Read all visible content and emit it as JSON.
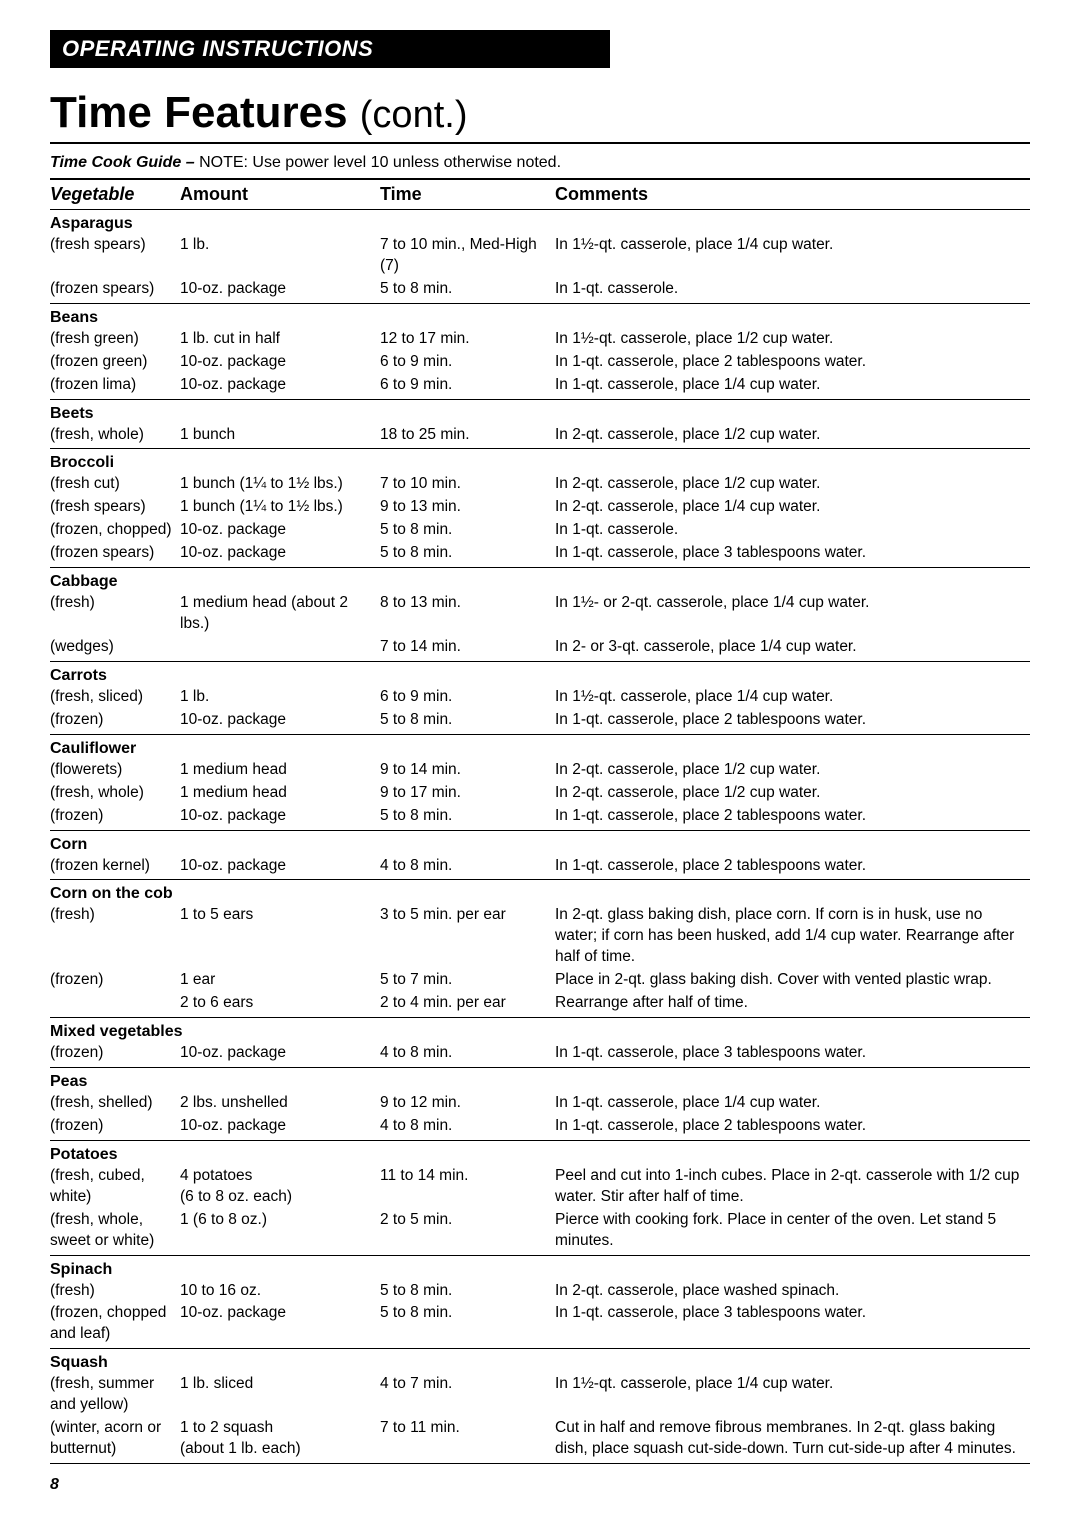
{
  "header_bar": "OPERATING INSTRUCTIONS",
  "title_main": "Time Features",
  "title_cont": "(cont.)",
  "guide_label": "Time Cook Guide –",
  "guide_note": " NOTE: Use power level 10 unless otherwise noted.",
  "columns": {
    "c1": "Vegetable",
    "c2": "Amount",
    "c3": "Time",
    "c4": "Comments"
  },
  "page_number": "8",
  "sections": [
    {
      "title": "Asparagus",
      "rows": [
        {
          "veg": "(fresh spears)",
          "amount": "1 lb.",
          "time": "7 to 10 min., Med-High (7)",
          "comment": "In 1½-qt. casserole, place 1/4 cup water."
        },
        {
          "veg": "(frozen spears)",
          "amount": "10-oz. package",
          "time": "5 to 8 min.",
          "comment": "In 1-qt. casserole."
        }
      ]
    },
    {
      "title": "Beans",
      "rows": [
        {
          "veg": "(fresh green)",
          "amount": "1 lb. cut in half",
          "time": "12 to 17 min.",
          "comment": "In 1½-qt. casserole, place 1/2 cup water."
        },
        {
          "veg": "(frozen green)",
          "amount": "10-oz. package",
          "time": "6 to 9 min.",
          "comment": "In 1-qt. casserole, place 2 tablespoons water."
        },
        {
          "veg": "(frozen lima)",
          "amount": "10-oz. package",
          "time": "6 to 9 min.",
          "comment": "In 1-qt. casserole, place 1/4 cup water."
        }
      ]
    },
    {
      "title": "Beets",
      "rows": [
        {
          "veg": "(fresh, whole)",
          "amount": "1 bunch",
          "time": "18 to 25 min.",
          "comment": "In 2-qt. casserole, place 1/2 cup water."
        }
      ]
    },
    {
      "title": "Broccoli",
      "rows": [
        {
          "veg": "(fresh cut)",
          "amount": "1 bunch (1¼ to 1½ lbs.)",
          "time": "7 to 10 min.",
          "comment": "In 2-qt. casserole, place 1/2 cup water."
        },
        {
          "veg": "(fresh spears)",
          "amount": "1 bunch (1¼ to 1½ lbs.)",
          "time": "9 to 13 min.",
          "comment": "In 2-qt. casserole, place 1/4 cup water."
        },
        {
          "veg": "(frozen, chopped)",
          "amount": "10-oz. package",
          "time": "5 to 8 min.",
          "comment": "In 1-qt. casserole."
        },
        {
          "veg": "(frozen spears)",
          "amount": "10-oz. package",
          "time": "5 to 8 min.",
          "comment": "In 1-qt. casserole, place 3 tablespoons water."
        }
      ]
    },
    {
      "title": "Cabbage",
      "rows": [
        {
          "veg": "(fresh)",
          "amount": "1 medium head (about 2 lbs.)",
          "time": "8 to 13 min.",
          "comment": "In 1½- or 2-qt. casserole, place 1/4 cup water."
        },
        {
          "veg": "(wedges)",
          "amount": "",
          "time": "7 to 14 min.",
          "comment": "In 2- or 3-qt. casserole, place 1/4 cup water."
        }
      ]
    },
    {
      "title": "Carrots",
      "rows": [
        {
          "veg": "(fresh, sliced)",
          "amount": "1 lb.",
          "time": "6 to 9 min.",
          "comment": "In 1½-qt. casserole, place 1/4 cup water."
        },
        {
          "veg": "(frozen)",
          "amount": "10-oz. package",
          "time": "5 to 8 min.",
          "comment": "In 1-qt. casserole, place 2 tablespoons water."
        }
      ]
    },
    {
      "title": "Cauliflower",
      "rows": [
        {
          "veg": "(flowerets)",
          "amount": "1 medium head",
          "time": "9 to 14 min.",
          "comment": "In 2-qt. casserole, place 1/2 cup water."
        },
        {
          "veg": "(fresh, whole)",
          "amount": "1 medium head",
          "time": "9 to 17 min.",
          "comment": "In 2-qt. casserole, place 1/2 cup water."
        },
        {
          "veg": "(frozen)",
          "amount": "10-oz. package",
          "time": "5 to 8 min.",
          "comment": "In 1-qt. casserole, place 2 tablespoons water."
        }
      ]
    },
    {
      "title": "Corn",
      "rows": [
        {
          "veg": "(frozen kernel)",
          "amount": "10-oz. package",
          "time": "4 to 8 min.",
          "comment": "In 1-qt. casserole, place 2 tablespoons water."
        }
      ]
    },
    {
      "title": "Corn on the cob",
      "rows": [
        {
          "veg": "(fresh)",
          "amount": "1 to 5 ears",
          "time": "3 to 5 min. per ear",
          "comment": "In 2-qt. glass baking dish, place corn. If corn is in husk, use no water; if corn has been husked, add 1/4 cup water. Rearrange after half of time."
        },
        {
          "veg": "(frozen)",
          "amount": "1 ear",
          "time": "5 to 7 min.",
          "comment": "Place in 2-qt. glass baking dish. Cover with vented plastic wrap."
        },
        {
          "veg": "",
          "amount": "2 to 6 ears",
          "time": "2 to 4 min. per ear",
          "comment": "Rearrange after half of time."
        }
      ]
    },
    {
      "title": "Mixed vegetables",
      "rows": [
        {
          "veg": "(frozen)",
          "amount": "10-oz. package",
          "time": "4 to 8 min.",
          "comment": "In 1-qt. casserole, place 3 tablespoons water."
        }
      ]
    },
    {
      "title": "Peas",
      "rows": [
        {
          "veg": "(fresh, shelled)",
          "amount": "2 lbs. unshelled",
          "time": "9 to 12 min.",
          "comment": "In 1-qt. casserole, place 1/4 cup water."
        },
        {
          "veg": "(frozen)",
          "amount": "10-oz. package",
          "time": "4 to 8 min.",
          "comment": "In 1-qt. casserole, place 2 tablespoons water."
        }
      ]
    },
    {
      "title": "Potatoes",
      "rows": [
        {
          "veg": "(fresh, cubed, white)",
          "amount": "4 potatoes\n(6 to 8 oz. each)",
          "time": "11 to 14 min.",
          "comment": "Peel and cut into 1-inch cubes. Place in 2-qt. casserole with 1/2 cup water. Stir after half of time."
        },
        {
          "veg": "(fresh, whole, sweet or white)",
          "amount": "1 (6 to 8 oz.)",
          "time": "2 to 5 min.",
          "comment": "Pierce with cooking fork. Place in center of the oven. Let stand 5 minutes."
        }
      ]
    },
    {
      "title": "Spinach",
      "rows": [
        {
          "veg": "(fresh)",
          "amount": "10 to 16 oz.",
          "time": "5 to 8 min.",
          "comment": "In 2-qt. casserole, place washed spinach."
        },
        {
          "veg": "(frozen, chopped and leaf)",
          "amount": "10-oz. package",
          "time": "5 to 8 min.",
          "comment": "In 1-qt. casserole, place 3 tablespoons water."
        }
      ]
    },
    {
      "title": "Squash",
      "rows": [
        {
          "veg": "(fresh, summer and yellow)",
          "amount": "1 lb. sliced",
          "time": "4 to 7 min.",
          "comment": "In 1½-qt. casserole, place 1/4 cup water."
        },
        {
          "veg": "(winter, acorn or butternut)",
          "amount": "1 to 2 squash\n(about 1 lb. each)",
          "time": "7 to 11 min.",
          "comment": "Cut in half and remove fibrous membranes. In 2-qt. glass baking dish, place squash cut-side-down. Turn cut-side-up after 4 minutes."
        }
      ]
    }
  ]
}
